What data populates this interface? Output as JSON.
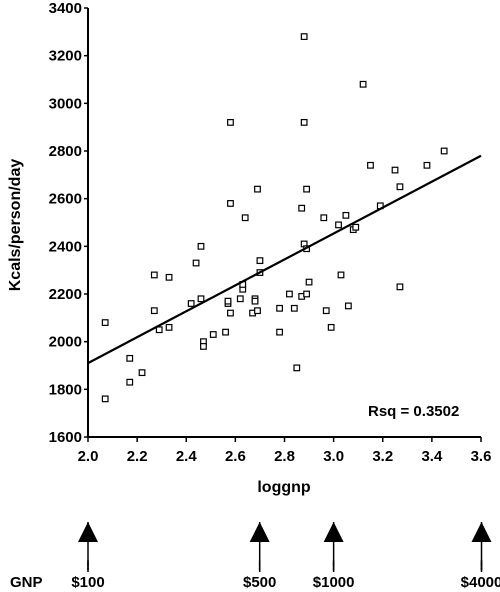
{
  "chart_data": {
    "type": "scatter",
    "xlabel": "loggnp",
    "ylabel": "Kcals/person/day",
    "xlim": [
      2.0,
      3.6
    ],
    "ylim": [
      1600,
      3400
    ],
    "x_ticks": [
      "2.0",
      "2.2",
      "2.4",
      "2.6",
      "2.8",
      "3.0",
      "3.2",
      "3.4",
      "3.6"
    ],
    "y_ticks": [
      "1600",
      "1800",
      "2000",
      "2200",
      "2400",
      "2600",
      "2800",
      "3000",
      "3200",
      "3400"
    ],
    "annotation": "Rsq = 0.3502",
    "trendline": {
      "x": [
        2.0,
        3.6
      ],
      "y": [
        1910,
        2780
      ]
    },
    "points": [
      [
        2.07,
        2080
      ],
      [
        2.07,
        1760
      ],
      [
        2.17,
        1830
      ],
      [
        2.17,
        1930
      ],
      [
        2.22,
        1870
      ],
      [
        2.27,
        2130
      ],
      [
        2.27,
        2280
      ],
      [
        2.29,
        2050
      ],
      [
        2.33,
        2060
      ],
      [
        2.33,
        2270
      ],
      [
        2.42,
        2160
      ],
      [
        2.44,
        2330
      ],
      [
        2.46,
        2400
      ],
      [
        2.46,
        2180
      ],
      [
        2.47,
        2000
      ],
      [
        2.47,
        1980
      ],
      [
        2.51,
        2030
      ],
      [
        2.56,
        2040
      ],
      [
        2.57,
        2160
      ],
      [
        2.57,
        2170
      ],
      [
        2.58,
        2120
      ],
      [
        2.58,
        2920
      ],
      [
        2.58,
        2580
      ],
      [
        2.62,
        2180
      ],
      [
        2.63,
        2220
      ],
      [
        2.63,
        2240
      ],
      [
        2.64,
        2520
      ],
      [
        2.67,
        2120
      ],
      [
        2.68,
        2180
      ],
      [
        2.69,
        2130
      ],
      [
        2.68,
        2170
      ],
      [
        2.69,
        2640
      ],
      [
        2.7,
        2290
      ],
      [
        2.7,
        2340
      ],
      [
        2.78,
        2040
      ],
      [
        2.78,
        2140
      ],
      [
        2.82,
        2200
      ],
      [
        2.84,
        2140
      ],
      [
        2.85,
        1890
      ],
      [
        2.87,
        2190
      ],
      [
        2.87,
        2560
      ],
      [
        2.88,
        2410
      ],
      [
        2.88,
        2920
      ],
      [
        2.88,
        3280
      ],
      [
        2.89,
        2640
      ],
      [
        2.9,
        2250
      ],
      [
        2.89,
        2200
      ],
      [
        2.89,
        2390
      ],
      [
        2.96,
        2520
      ],
      [
        2.97,
        2130
      ],
      [
        2.99,
        2060
      ],
      [
        3.02,
        2490
      ],
      [
        3.03,
        2280
      ],
      [
        3.05,
        2530
      ],
      [
        3.06,
        2150
      ],
      [
        3.08,
        2470
      ],
      [
        3.09,
        2480
      ],
      [
        3.12,
        3080
      ],
      [
        3.15,
        2740
      ],
      [
        3.19,
        2570
      ],
      [
        3.25,
        2720
      ],
      [
        3.27,
        2650
      ],
      [
        3.27,
        2230
      ],
      [
        3.38,
        2740
      ],
      [
        3.45,
        2800
      ]
    ]
  },
  "gnp_scale": {
    "label": "GNP",
    "markers": [
      {
        "label": "$100",
        "loggnp": 2.0
      },
      {
        "label": "$500",
        "loggnp": 2.69897
      },
      {
        "label": "$1000",
        "loggnp": 3.0
      },
      {
        "label": "$4000",
        "loggnp": 3.60206
      }
    ]
  }
}
